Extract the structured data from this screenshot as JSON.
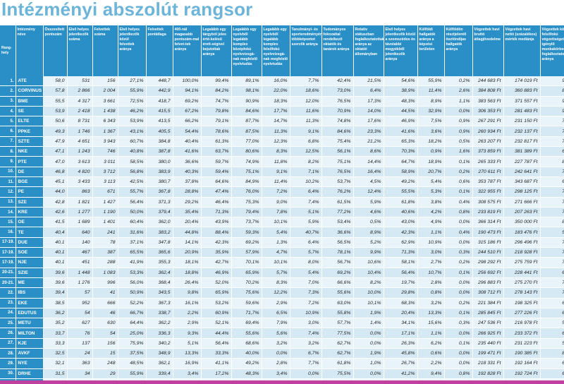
{
  "title": "Intézményi abszolút rangsor",
  "headers": [
    "Rang-\nhely",
    "Intézmény\nnéve",
    "Összesített pontszám",
    "Első helyes jelentkezők száma",
    "Felvettek száma",
    "Első helyes jelentkezők közül felvettek aránya",
    "Felvettek pontátlaga",
    "400-nál magasabb pontszám-mal felvet-tek aránya",
    "Legalább egy tárgyból jeles érté-kelésű érett-ségivel bejutottak aránya",
    "Legalább egy nyelvből legalább komplex középfokú nyelvvizsgá-nak megfelelő nyelvtudás",
    "Legalább egy nyelvből legalább komplex felsőfokú nyelvvizsgá-nak megfelelő nyelvtudás",
    "Tanulmányi- és sporteredményért többletpontot szerzők aránya",
    "Tudományos fokozattal rendelkező oktatók és tanárok aránya",
    "Rotatív státuszban foglalkoztatottak aránya az oktatói állományban",
    "Első helyes jelentkezők közül a szomszédos és távolabbi megyékből jelentkezők aránya",
    "Külföldi hallgatók aránya a képzési területen",
    "Külföldön résztjelentő ösztöndíjas hallgatók aránya",
    "Végzettek havi bruttó átlagjövedelme",
    "Végzettek havi nettó (százalékos) mérték mediánja",
    "Végzettek közül felsőfokú végzettséget igénylő munkakörben foglalkoztatottak aránya"
  ],
  "rows": [
    [
      "1.",
      "ATE",
      "58,0",
      "531",
      "156",
      "27,1%",
      "448,7",
      "100,0%",
      "99,4%",
      "89,1%",
      "16,0%",
      "7,7%",
      "42,4%",
      "21,5%",
      "54,6%",
      "55,9%",
      "0,2%",
      "244 683 Ft",
      "174 019 Ft",
      "95,2%"
    ],
    [
      "2.",
      "CORVINUS",
      "57,8",
      "2 866",
      "2 004",
      "55,9%",
      "442,9",
      "94,1%",
      "84,2%",
      "98,1%",
      "22,0%",
      "18,6%",
      "73,0%",
      "6,4%",
      "38,9%",
      "11,4%",
      "2,6%",
      "384 808 Ft",
      "360 883 Ft",
      "83,7%"
    ],
    [
      "3.",
      "BME",
      "55,5",
      "4 317",
      "3 661",
      "72,5%",
      "418,7",
      "69,2%",
      "74,7%",
      "90,9%",
      "18,3%",
      "12,0%",
      "76,5%",
      "17,3%",
      "48,3%",
      "8,9%",
      "1,1%",
      "383 563 Ft",
      "371 557 Ft",
      "91,1%"
    ],
    [
      "4.",
      "SE",
      "53,9",
      "2 418",
      "1 438",
      "46,2%",
      "415,5",
      "67,2%",
      "79,8%",
      "84,6%",
      "17,7%",
      "11,6%",
      "70,9%",
      "14,0%",
      "44,5%",
      "32,9%",
      "0,0%",
      "306 353 Ft",
      "281 483 Ft",
      "91,3%"
    ],
    [
      "5.",
      "ELTE",
      "50,6",
      "8 731",
      "6 343",
      "53,9%",
      "413,5",
      "66,2%",
      "79,1%",
      "87,7%",
      "14,7%",
      "11,3%",
      "74,8%",
      "17,6%",
      "46,9%",
      "7,5%",
      "0,9%",
      "267 291 Ft",
      "231 150 Ft",
      "77,9%"
    ],
    [
      "6.",
      "PPKE",
      "49,3",
      "1 746",
      "1 367",
      "43,1%",
      "405,5",
      "54,4%",
      "78,6%",
      "87,5%",
      "11,3%",
      "9,1%",
      "84,6%",
      "23,3%",
      "41,6%",
      "3,6%",
      "0,9%",
      "260 934 Ft",
      "232 137 Ft",
      "75,5%"
    ],
    [
      "7.",
      "SZTE",
      "47,9",
      "4 651",
      "3 943",
      "60,7%",
      "384,8",
      "40,4%",
      "61,3%",
      "77,0%",
      "12,3%",
      "6,8%",
      "75,4%",
      "21,2%",
      "65,3%",
      "18,2%",
      "0,5%",
      "263 207 Ft",
      "232 817 Ft",
      "79,3%"
    ],
    [
      "8.",
      "NKE",
      "47,1",
      "1 243",
      "746",
      "40,8%",
      "387,8",
      "41,6%",
      "63,7%",
      "80,6%",
      "8,3%",
      "12,5%",
      "56,1%",
      "8,6%",
      "70,3%",
      "0,9%",
      "1,6%",
      "373 859 Ft",
      "381 389 Ft",
      "64,8%"
    ],
    [
      "9.",
      "PTE",
      "47,0",
      "3 613",
      "3 011",
      "58,5%",
      "380,0",
      "36,6%",
      "59,7%",
      "74,9%",
      "11,8%",
      "8,2%",
      "75,1%",
      "14,4%",
      "64,7%",
      "18,9%",
      "0,1%",
      "265 333 Ft",
      "227 787 Ft",
      "80,9%"
    ],
    [
      "10.",
      "DE",
      "46,8",
      "4 820",
      "3 712",
      "56,8%",
      "383,9",
      "40,3%",
      "59,4%",
      "75,1%",
      "9,1%",
      "7,1%",
      "76,5%",
      "16,4%",
      "58,9%",
      "20,7%",
      "0,2%",
      "270 611 Ft",
      "242 641 Ft",
      "77,1%"
    ],
    [
      "11.",
      "BGE",
      "45,1",
      "3 433",
      "3 113",
      "42,5%",
      "380,7",
      "37,8%",
      "64,6%",
      "84,9%",
      "11,4%",
      "10,2%",
      "53,7%",
      "4,5%",
      "49,2%",
      "5,4%",
      "0,6%",
      "353 787 Ft",
      "343 687 Ft",
      "68,7%"
    ],
    [
      "12.",
      "PE",
      "44,0",
      "863",
      "671",
      "55,7%",
      "367,8",
      "28,8%",
      "47,4%",
      "76,0%",
      "7,2%",
      "6,4%",
      "76,2%",
      "12,4%",
      "55,5%",
      "5,3%",
      "0,1%",
      "322 955 Ft",
      "298 125 Ft",
      "74,0%"
    ],
    [
      "13.",
      "SZE",
      "42,8",
      "1 821",
      "1 427",
      "56,4%",
      "371,3",
      "29,2%",
      "46,4%",
      "75,3%",
      "9,0%",
      "7,4%",
      "61,5%",
      "5,9%",
      "61,8%",
      "3,8%",
      "0,4%",
      "308 575 Ft",
      "271 666 Ft",
      "78,0%"
    ],
    [
      "14.",
      "KRE",
      "42,6",
      "1 277",
      "1 190",
      "50,0%",
      "379,4",
      "35,4%",
      "71,3%",
      "79,4%",
      "7,8%",
      "5,1%",
      "77,2%",
      "4,6%",
      "40,6%",
      "4,2%",
      "0,8%",
      "233 819 Ft",
      "207 263 Ft",
      "73,2%"
    ],
    [
      "15.",
      "OE",
      "41,5",
      "1 689",
      "1 401",
      "60,4%",
      "362,0",
      "20,4%",
      "43,9%",
      "73,7%",
      "10,1%",
      "5,9%",
      "53,4%",
      "0,5%",
      "43,0%",
      "4,9%",
      "0,0%",
      "366 314 Ft",
      "350 000 Ft",
      "88,2%"
    ],
    [
      "16.",
      "TE",
      "40,4",
      "640",
      "241",
      "31,6%",
      "383,2",
      "44,8%",
      "88,4%",
      "59,3%",
      "5,4%",
      "40,7%",
      "36,6%",
      "8,9%",
      "42,3%",
      "1,1%",
      "0,4%",
      "190 473 Ft",
      "183 476 Ft",
      "56,5%"
    ],
    [
      "17-19.",
      "DUE",
      "40,1",
      "140",
      "78",
      "37,1%",
      "347,8",
      "14,1%",
      "42,3%",
      "69,2%",
      "1,3%",
      "6,4%",
      "56,5%",
      "5,2%",
      "62,9%",
      "10,9%",
      "0,0%",
      "315 186 Ft",
      "296 496 Ft",
      "77,3%"
    ],
    [
      "17-19.",
      "SOE",
      "40,1",
      "467",
      "387",
      "65,5%",
      "365,6",
      "20,9%",
      "35,9%",
      "57,9%",
      "4,7%",
      "5,7%",
      "78,1%",
      "9,9%",
      "71,3%",
      "3,0%",
      "0,3%",
      "244 510 Ft",
      "218 928 Ft",
      "78,6%"
    ],
    [
      "17-19.",
      "NJE",
      "40,1",
      "451",
      "288",
      "41,9%",
      "355,3",
      "18,1%",
      "42,7%",
      "70,1%",
      "10,1%",
      "8,0%",
      "56,7%",
      "10,6%",
      "58,1%",
      "2,7%",
      "0,2%",
      "298 292 Ft",
      "275 759 Ft",
      "72,3%"
    ],
    [
      "20-21.",
      "SZIE",
      "39,6",
      "1 448",
      "1 083",
      "53,3%",
      "362,4",
      "18,8%",
      "46,9%",
      "65,9%",
      "5,7%",
      "5,4%",
      "69,2%",
      "10,4%",
      "56,4%",
      "10,7%",
      "0,1%",
      "256 692 Ft",
      "228 441 Ft",
      "67,6%"
    ],
    [
      "20-21.",
      "ME",
      "39,6",
      "1 276",
      "996",
      "56,0%",
      "368,4",
      "26,4%",
      "52,0%",
      "70,2%",
      "8,3%",
      "7,0%",
      "66,6%",
      "8,2%",
      "19,7%",
      "2,8%",
      "0,0%",
      "296 883 Ft",
      "275 270 Ft",
      "79,6%"
    ],
    [
      "22.",
      "IBS",
      "39,4",
      "57",
      "41",
      "50,9%",
      "343,5",
      "9,8%",
      "65,9%",
      "75,6%",
      "12,2%",
      "7,3%",
      "55,6%",
      "10,0%",
      "29,8%",
      "0,8%",
      "0,0%",
      "308 712 Ft",
      "278 143 Ft",
      "71,5%"
    ],
    [
      "23.",
      "EKE",
      "38,5",
      "952",
      "666",
      "52,2%",
      "367,3",
      "16,1%",
      "53,2%",
      "59,6%",
      "2,9%",
      "7,2%",
      "63,0%",
      "10,1%",
      "68,3%",
      "3,2%",
      "0,2%",
      "221 384 Ft",
      "198 325 Ft",
      "69,2%"
    ],
    [
      "24.",
      "EDUTUS",
      "36,2",
      "54",
      "46",
      "66,7%",
      "338,7",
      "2,2%",
      "60,9%",
      "71,7%",
      "6,5%",
      "10,9%",
      "55,8%",
      "1,9%",
      "20,4%",
      "13,3%",
      "0,1%",
      "285 845 Ft",
      "277 226 Ft",
      "63,2%"
    ],
    [
      "25.",
      "METU",
      "35,2",
      "627",
      "630",
      "64,4%",
      "362,2",
      "2,9%",
      "52,1%",
      "69,4%",
      "7,9%",
      "3,0%",
      "57,7%",
      "1,4%",
      "34,1%",
      "15,6%",
      "0,3%",
      "247 536 Ft",
      "216 978 Ft",
      "57,2%"
    ],
    [
      "26.",
      "MILTON",
      "33,7",
      "76",
      "54",
      "25,0%",
      "336,3",
      "9,3%",
      "44,4%",
      "55,6%",
      "5,6%",
      "7,4%",
      "77,5%",
      "0,0%",
      "17,1%",
      "1,1%",
      "0,0%",
      "266 925 Ft",
      "233 372 Ft",
      "63,5%"
    ],
    [
      "27.",
      "KJE",
      "33,3",
      "137",
      "156",
      "75,9%",
      "340,2",
      "5,1%",
      "56,4%",
      "68,6%",
      "3,2%",
      "3,2%",
      "62,7%",
      "0,0%",
      "26,3%",
      "6,2%",
      "0,1%",
      "235 440 Ft",
      "231 223 Ft",
      "53,4%"
    ],
    [
      "28.",
      "AVKF",
      "32,5",
      "24",
      "15",
      "37,5%",
      "348,9",
      "13,3%",
      "33,3%",
      "40,0%",
      "0,0%",
      "6,7%",
      "62,7%",
      "1,9%",
      "45,8%",
      "0,6%",
      "0,0%",
      "199 471 Ft",
      "190 385 Ft",
      "81,3%"
    ],
    [
      "29.",
      "NYE",
      "32,1",
      "363",
      "248",
      "48,5%",
      "362,1",
      "16,9%",
      "41,1%",
      "49,2%",
      "2,8%",
      "7,7%",
      "61,8%",
      "1,0%",
      "26,7%",
      "2,2%",
      "0,0%",
      "218 331 Ft",
      "192 164 Ft",
      "61,5%"
    ],
    [
      "30.",
      "DRHE",
      "31,5",
      "34",
      "29",
      "55,9%",
      "339,4",
      "3,4%",
      "17,2%",
      "48,3%",
      "3,4%",
      "0,0%",
      "75,5%",
      "0,0%",
      "41,2%",
      "9,4%",
      "0,8%",
      "192 828 Ft",
      "192 724 Ft",
      "61,9%"
    ],
    [
      "31.",
      "GFE",
      "31,0",
      "103",
      "66",
      "50,5%",
      "340,6",
      "16,7%",
      "31,8%",
      "37,9%",
      "4,5%",
      "3,0%",
      "62,2%",
      "0,0%",
      "29,1%",
      "1,9%",
      "0,1%",
      "225 392 Ft",
      "202 018 Ft",
      "71,4%"
    ],
    [
      "32.",
      "EJF",
      "29,7",
      "49",
      "32",
      "59,2%",
      "341,2",
      "9,4%",
      "15,6%",
      "46,9%",
      "6,3%",
      "0,0%",
      "48,6%",
      "2,6%",
      "53,1%",
      "2,4%",
      "0,0%",
      "197 631 Ft",
      "183 243 Ft",
      "66,7%"
    ]
  ]
}
